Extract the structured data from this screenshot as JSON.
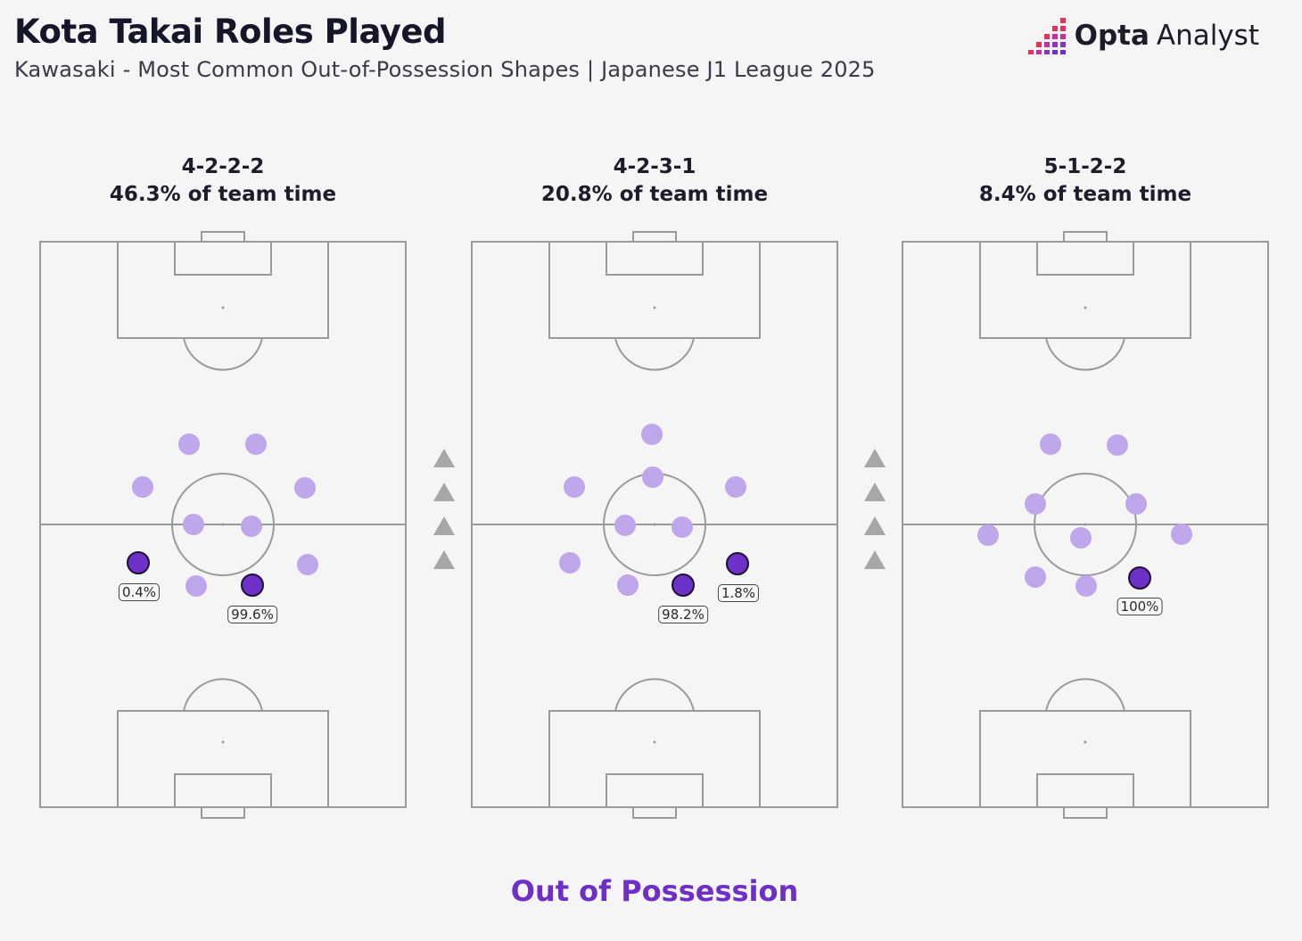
{
  "header": {
    "title": "Kota Takai Roles Played",
    "subtitle": "Kawasaki - Most Common Out-of-Possession Shapes | Japanese J1 League 2025"
  },
  "brand": {
    "name_bold": "Opta",
    "name_light": "Analyst"
  },
  "shapes": [
    {
      "formation": "4-2-2-2",
      "share": "46.3% of team time",
      "highlights": [
        "0.4%",
        "99.6%"
      ]
    },
    {
      "formation": "4-2-3-1",
      "share": "20.8% of team time",
      "highlights": [
        "98.2%",
        "1.8%"
      ]
    },
    {
      "formation": "5-1-2-2",
      "share": "8.4% of team time",
      "highlights": [
        "100%"
      ]
    }
  ],
  "footer": {
    "label": "Out of Possession"
  },
  "colors": {
    "player_dot": "#c0a6ea",
    "highlight_dot": "#6d30c9",
    "footer_text": "#6d2fc6",
    "pitch_lines": "#9a9a9a"
  },
  "icons": {
    "direction_arrows": "up-triangle-icon",
    "logo": "opta-bars-icon"
  }
}
